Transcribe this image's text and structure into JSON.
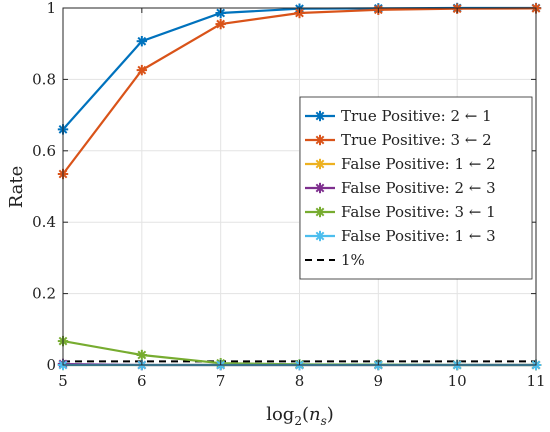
{
  "chart_data": {
    "type": "line",
    "xlabel": "log",
    "xlabel_base": "2",
    "xlabel_arg": "n",
    "xlabel_sub": "s",
    "ylabel": "Rate",
    "xlim": [
      5,
      11
    ],
    "ylim": [
      0,
      1
    ],
    "x_ticks": [
      5,
      6,
      7,
      8,
      9,
      10,
      11
    ],
    "x_tick_labels": [
      "5",
      "6",
      "7",
      "8",
      "9",
      "10",
      "11"
    ],
    "y_ticks": [
      0,
      0.2,
      0.4,
      0.6,
      0.8,
      1
    ],
    "y_tick_labels": [
      "0",
      "0.2",
      "0.4",
      "0.6",
      "0.8",
      "1"
    ],
    "grid": true,
    "legend_position": "right",
    "x": [
      5,
      6,
      7,
      8,
      9,
      10,
      11
    ],
    "series": [
      {
        "name": "True Positive: 2 ← 1",
        "color": "#0072BD",
        "marker": "asterisk",
        "values": [
          0.66,
          0.907,
          0.986,
          0.998,
          0.999,
          1.0,
          1.0
        ]
      },
      {
        "name": "True Positive: 3 ← 2",
        "color": "#D95319",
        "marker": "asterisk",
        "values": [
          0.535,
          0.826,
          0.955,
          0.986,
          0.995,
          0.998,
          0.999
        ]
      },
      {
        "name": "False Positive: 1 ← 2",
        "color": "#EDB120",
        "marker": "asterisk",
        "values": [
          0.0,
          0.0,
          0.0,
          0.0,
          0.0,
          0.0,
          0.0
        ]
      },
      {
        "name": "False Positive: 2 ← 3",
        "color": "#7E2F8E",
        "marker": "asterisk",
        "values": [
          0.003,
          0.0,
          0.0,
          0.0,
          0.0,
          0.0,
          0.0
        ]
      },
      {
        "name": "False Positive: 3 ← 1",
        "color": "#77AC30",
        "marker": "asterisk",
        "values": [
          0.067,
          0.028,
          0.005,
          0.002,
          0.001,
          0.0,
          0.0
        ]
      },
      {
        "name": "False Positive: 1 ← 3",
        "color": "#4DBEEE",
        "marker": "asterisk",
        "values": [
          0.0,
          0.0,
          0.0,
          0.0,
          0.0,
          0.0,
          0.0
        ]
      }
    ],
    "reference_line": {
      "name": "1%",
      "value": 0.01,
      "color": "#000000",
      "style": "dashed"
    }
  }
}
